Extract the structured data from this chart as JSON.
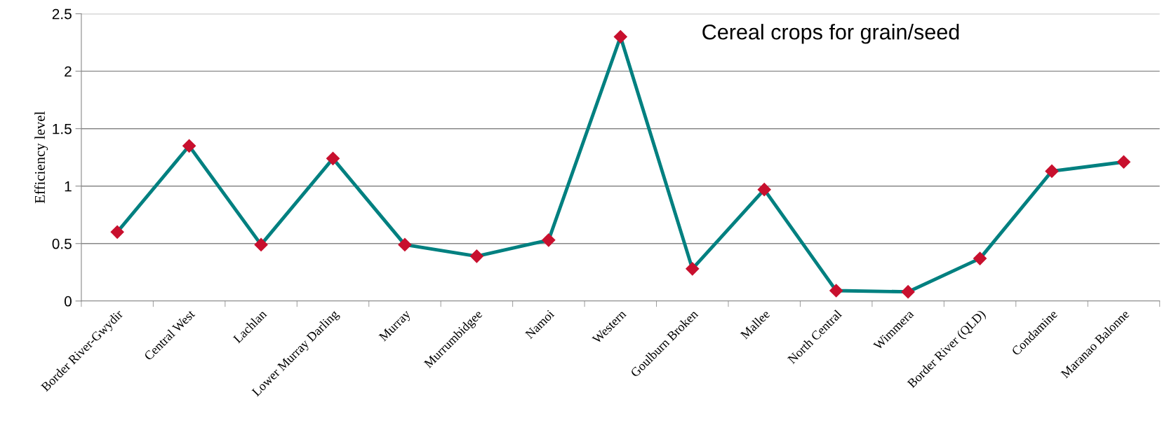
{
  "chart_data": {
    "type": "line",
    "title": "Cereal crops for grain/seed",
    "ylabel": "Efficiency level",
    "categories": [
      "Border River-Gwydir",
      "Central West",
      "Lachlan",
      "Lower Murray Darling",
      "Murray",
      "Murrumbidgee",
      "Namoi",
      "Western",
      "Goulburn Broken",
      "Mallee",
      "North Central",
      "Wimmera",
      "Border River (QLD)",
      "Condamine",
      "Maranao Balonne"
    ],
    "series": [
      {
        "color": "#008080",
        "colors": [
          "#c8102e",
          "#c8102e",
          "#c8102e",
          "#c8102e",
          "#c8102e",
          "#c8102e",
          "#c8102e",
          "#c8102e",
          "#c8102e",
          "#c8102e",
          "#c8102e",
          "#c8102e",
          "#c8102e",
          "#c8102e",
          "#c8102e"
        ],
        "values": [
          0.6,
          1.35,
          0.49,
          1.24,
          0.49,
          0.39,
          0.53,
          2.3,
          0.28,
          0.97,
          0.09,
          0.08,
          0.37,
          1.13,
          1.21
        ]
      }
    ],
    "marker": "diamond",
    "line_style": "solid",
    "ylim": [
      0,
      2.5
    ],
    "yticks": [
      0,
      {
        "value": 0.5,
        "label": "0.5"
      },
      1,
      {
        "value": 1.5,
        "label": "1.5"
      },
      2,
      {
        "value": 2.5,
        "label": "2.5"
      }
    ],
    "grid": "y",
    "legend": false
  }
}
